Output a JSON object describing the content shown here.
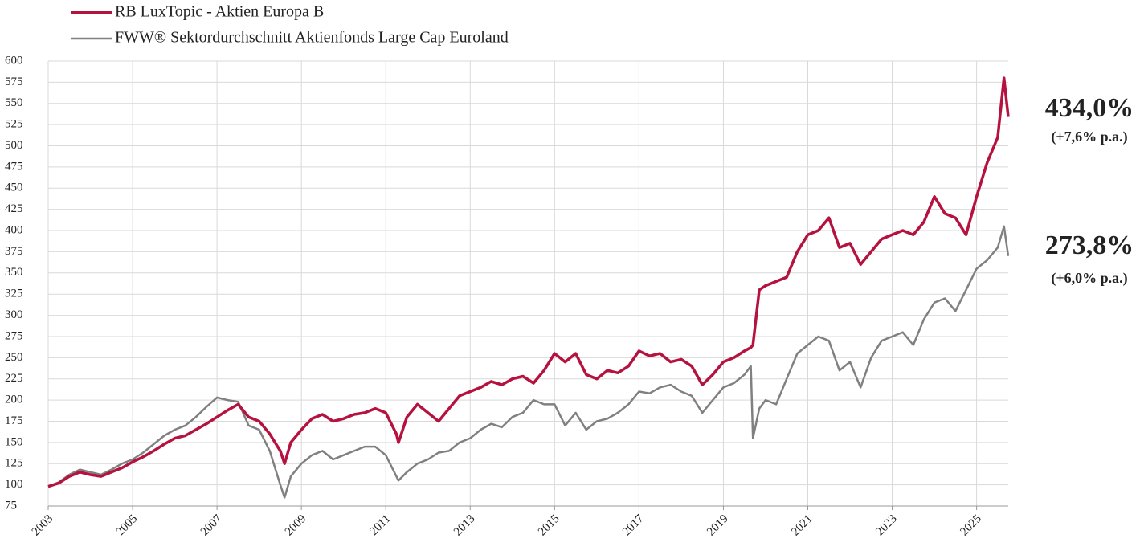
{
  "chart_data": {
    "type": "line",
    "x": [
      2003,
      2003.25,
      2003.5,
      2003.75,
      2004,
      2004.25,
      2004.5,
      2004.75,
      2005,
      2005.25,
      2005.5,
      2005.75,
      2006,
      2006.25,
      2006.5,
      2006.75,
      2007,
      2007.25,
      2007.5,
      2007.75,
      2008,
      2008.25,
      2008.5,
      2008.6,
      2008.75,
      2009,
      2009.25,
      2009.5,
      2009.75,
      2010,
      2010.25,
      2010.5,
      2010.75,
      2011,
      2011.25,
      2011.3,
      2011.5,
      2011.75,
      2012,
      2012.25,
      2012.5,
      2012.75,
      2013,
      2013.25,
      2013.5,
      2013.75,
      2014,
      2014.25,
      2014.5,
      2014.75,
      2015,
      2015.25,
      2015.5,
      2015.75,
      2016,
      2016.25,
      2016.5,
      2016.75,
      2017,
      2017.25,
      2017.5,
      2017.75,
      2018,
      2018.25,
      2018.5,
      2018.75,
      2019,
      2019.25,
      2019.5,
      2019.65,
      2019.7,
      2019.85,
      2020,
      2020.25,
      2020.5,
      2020.75,
      2021,
      2021.25,
      2021.5,
      2021.75,
      2022,
      2022.25,
      2022.5,
      2022.75,
      2023,
      2023.25,
      2023.5,
      2023.75,
      2024,
      2024.25,
      2024.5,
      2024.75,
      2025,
      2025.25,
      2025.5,
      2025.65,
      2025.75
    ],
    "series": [
      {
        "name": "RB LuxTopic - Aktien Europa B",
        "color": "#b5123f",
        "values": [
          98,
          102,
          110,
          115,
          112,
          110,
          115,
          120,
          127,
          133,
          140,
          148,
          155,
          158,
          165,
          172,
          180,
          188,
          195,
          180,
          175,
          160,
          140,
          125,
          150,
          165,
          178,
          183,
          175,
          178,
          183,
          185,
          190,
          185,
          160,
          150,
          180,
          195,
          185,
          175,
          190,
          205,
          210,
          215,
          222,
          218,
          225,
          228,
          220,
          235,
          255,
          245,
          255,
          230,
          225,
          235,
          232,
          240,
          258,
          252,
          255,
          245,
          248,
          240,
          218,
          230,
          245,
          250,
          258,
          262,
          265,
          330,
          335,
          340,
          345,
          375,
          395,
          400,
          415,
          380,
          385,
          360,
          375,
          390,
          395,
          400,
          395,
          410,
          440,
          420,
          415,
          395,
          440,
          480,
          510,
          580,
          534
        ]
      },
      {
        "name": "FWW® Sektordurchschnitt Aktienfonds Large Cap Euroland",
        "color": "#808080",
        "values": [
          98,
          103,
          112,
          118,
          115,
          112,
          118,
          125,
          130,
          138,
          148,
          158,
          165,
          170,
          180,
          192,
          203,
          200,
          198,
          170,
          165,
          140,
          100,
          85,
          110,
          125,
          135,
          140,
          130,
          135,
          140,
          145,
          145,
          135,
          110,
          105,
          115,
          125,
          130,
          138,
          140,
          150,
          155,
          165,
          172,
          168,
          180,
          185,
          200,
          195,
          195,
          170,
          185,
          165,
          175,
          178,
          185,
          195,
          210,
          208,
          215,
          218,
          210,
          205,
          185,
          200,
          215,
          220,
          230,
          240,
          155,
          190,
          200,
          195,
          225,
          255,
          265,
          275,
          270,
          235,
          245,
          215,
          250,
          270,
          275,
          280,
          265,
          295,
          315,
          320,
          305,
          330,
          355,
          365,
          380,
          405,
          370
        ]
      }
    ],
    "annotations": [
      {
        "text": "434,0%",
        "subtext": "(+7,6% p.a.)"
      },
      {
        "text": "273,8%",
        "subtext": "(+6,0% p.a.)"
      }
    ],
    "xlim": [
      2003,
      2025.75
    ],
    "xticks": [
      2003,
      2005,
      2007,
      2009,
      2011,
      2013,
      2015,
      2017,
      2019,
      2021,
      2023,
      2025
    ],
    "ylim": [
      75,
      600
    ],
    "yticks": [
      75,
      100,
      125,
      150,
      175,
      200,
      225,
      250,
      275,
      300,
      325,
      350,
      375,
      400,
      425,
      450,
      475,
      500,
      525,
      550,
      575,
      600
    ],
    "grid": true
  }
}
